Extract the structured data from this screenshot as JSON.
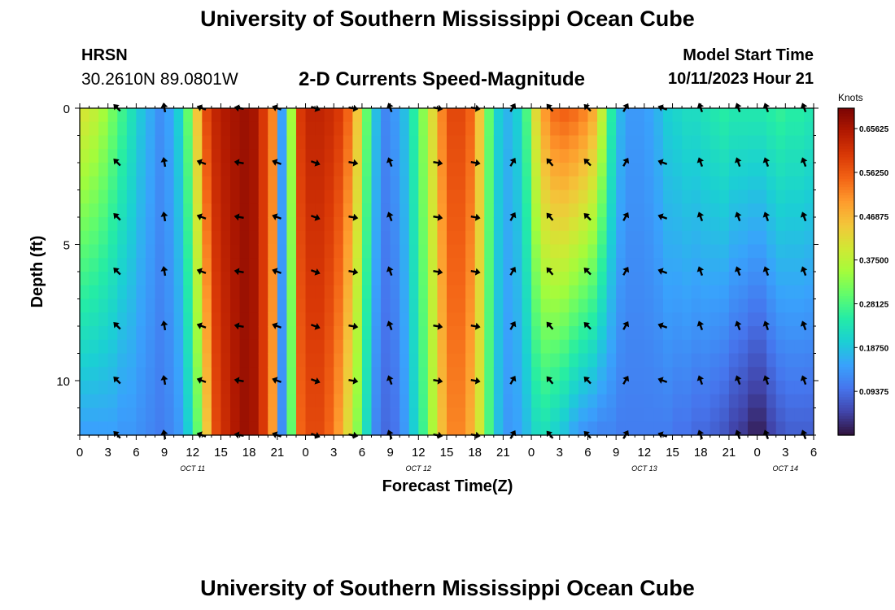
{
  "header": {
    "title": "University of Southern Mississippi Ocean Cube",
    "station": "HRSN",
    "coordinates": "30.2610N  89.0801W",
    "model_start_label": "Model Start Time",
    "model_start_value": "10/11/2023 Hour 21"
  },
  "footer": {
    "title": "University of Southern Mississippi Ocean Cube"
  },
  "chart_data": {
    "type": "heatmap",
    "title": "2-D Currents Speed-Magnitude",
    "xlabel": "Forecast Time(Z)",
    "ylabel": "Depth (ft)",
    "colorbar_label": "Knots",
    "colorbar_ticks": [
      "0.65625",
      "0.56250",
      "0.46875",
      "0.37500",
      "0.28125",
      "0.18750",
      "0.09375"
    ],
    "colorbar_range": [
      0,
      0.7
    ],
    "x_range": [
      0,
      78
    ],
    "y_range": [
      0,
      12
    ],
    "x_tick_labels": [
      "0",
      "3",
      "6",
      "9",
      "12",
      "15",
      "18",
      "21",
      "0",
      "3",
      "6",
      "9",
      "12",
      "15",
      "18",
      "21",
      "0",
      "3",
      "6",
      "9",
      "12",
      "15",
      "18",
      "21",
      "0",
      "3",
      "6"
    ],
    "y_ticks": [
      0,
      5,
      10
    ],
    "date_labels": [
      {
        "label": "OCT 11",
        "at_hour": 12
      },
      {
        "label": "OCT 12",
        "at_hour": 36
      },
      {
        "label": "OCT 13",
        "at_hour": 60
      },
      {
        "label": "OCT 14",
        "at_hour": 75
      }
    ],
    "colors": [
      "#30123b",
      "#4145ab",
      "#4675ed",
      "#39a2fc",
      "#1bcfd4",
      "#24eca6",
      "#61fc6c",
      "#a4fc3b",
      "#d1e834",
      "#f3c63a",
      "#fe9b2d",
      "#f36315",
      "#d93806",
      "#b11901",
      "#7a0403"
    ],
    "speed_profile": {
      "hours": [
        0,
        1,
        2,
        3,
        4,
        5,
        6,
        7,
        8,
        9,
        10,
        11,
        12,
        13,
        14,
        15,
        16,
        17,
        18,
        19,
        20,
        21,
        22,
        23,
        24,
        25,
        26,
        27,
        28,
        29,
        30,
        31,
        32,
        33,
        34,
        35,
        36,
        37,
        38,
        39,
        40,
        41,
        42,
        43,
        44,
        45,
        46,
        47,
        48,
        49,
        50,
        51,
        52,
        53,
        54,
        55,
        56,
        57,
        58,
        59,
        60,
        61,
        62,
        63,
        64,
        65,
        66,
        67,
        68,
        69,
        70,
        71,
        72,
        73,
        74,
        75,
        76,
        77
      ],
      "surface": [
        0.4,
        0.38,
        0.35,
        0.31,
        0.27,
        0.23,
        0.19,
        0.16,
        0.13,
        0.15,
        0.2,
        0.3,
        0.45,
        0.58,
        0.63,
        0.65,
        0.66,
        0.67,
        0.66,
        0.6,
        0.52,
        0.15,
        0.35,
        0.6,
        0.63,
        0.63,
        0.62,
        0.6,
        0.55,
        0.45,
        0.3,
        0.18,
        0.12,
        0.14,
        0.18,
        0.25,
        0.33,
        0.42,
        0.52,
        0.58,
        0.58,
        0.55,
        0.45,
        0.3,
        0.2,
        0.17,
        0.2,
        0.28,
        0.42,
        0.5,
        0.54,
        0.55,
        0.54,
        0.52,
        0.48,
        0.38,
        0.25,
        0.17,
        0.14,
        0.14,
        0.15,
        0.17,
        0.2,
        0.21,
        0.22,
        0.22,
        0.23,
        0.24,
        0.25,
        0.24,
        0.24,
        0.24,
        0.24,
        0.25,
        0.26,
        0.25,
        0.25,
        0.24
      ],
      "bottom": [
        0.15,
        0.15,
        0.15,
        0.15,
        0.14,
        0.14,
        0.13,
        0.12,
        0.11,
        0.12,
        0.14,
        0.2,
        0.3,
        0.45,
        0.58,
        0.62,
        0.65,
        0.67,
        0.66,
        0.6,
        0.5,
        0.13,
        0.3,
        0.55,
        0.58,
        0.58,
        0.55,
        0.5,
        0.42,
        0.33,
        0.22,
        0.12,
        0.09,
        0.1,
        0.14,
        0.2,
        0.27,
        0.36,
        0.46,
        0.52,
        0.52,
        0.48,
        0.4,
        0.28,
        0.18,
        0.14,
        0.15,
        0.18,
        0.22,
        0.23,
        0.21,
        0.19,
        0.16,
        0.14,
        0.13,
        0.12,
        0.12,
        0.11,
        0.11,
        0.11,
        0.11,
        0.11,
        0.11,
        0.1,
        0.1,
        0.09,
        0.09,
        0.08,
        0.07,
        0.05,
        0.04,
        0.02,
        0.02,
        0.05,
        0.07,
        0.08,
        0.08,
        0.08
      ]
    },
    "vector_hours": [
      4,
      9,
      13,
      17,
      21,
      25,
      29,
      33,
      38,
      42,
      46,
      50,
      54,
      58,
      62,
      66,
      70,
      73,
      77
    ],
    "vector_depths": [
      0,
      2,
      4,
      6,
      8,
      10,
      12
    ],
    "vector_directions_deg": [
      225,
      260,
      200,
      190,
      200,
      20,
      10,
      250,
      10,
      10,
      300,
      230,
      225,
      300,
      200,
      250,
      250,
      250,
      250
    ]
  }
}
